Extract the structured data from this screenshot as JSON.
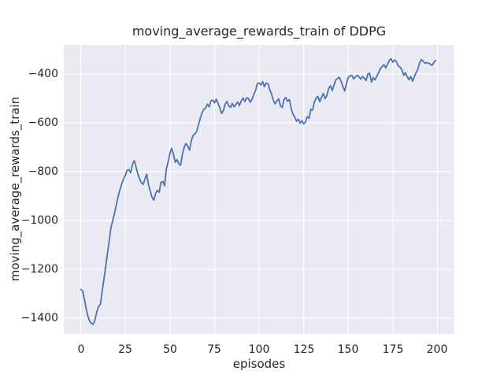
{
  "chart_data": {
    "type": "line",
    "title": "moving_average_rewards_train of DDPG",
    "xlabel": "episodes",
    "ylabel": "moving_average_rewards_train",
    "x_ticks": [
      0,
      25,
      50,
      75,
      100,
      125,
      150,
      175,
      200
    ],
    "y_ticks": [
      -400,
      -600,
      -800,
      -1000,
      -1200,
      -1400
    ],
    "xlim": [
      -9.5,
      209.5
    ],
    "ylim": [
      -1465,
      -281
    ],
    "grid": true,
    "legend": "none",
    "background": "#eaeaf2",
    "grid_color": "#ffffff",
    "line_color": "#4c72b0",
    "text_color": "#262626",
    "series": [
      {
        "name": "moving_average_rewards_train",
        "x_range": [
          0,
          199
        ],
        "y": [
          -1283,
          -1288,
          -1320,
          -1360,
          -1392,
          -1412,
          -1422,
          -1425,
          -1408,
          -1375,
          -1352,
          -1345,
          -1292,
          -1240,
          -1190,
          -1135,
          -1080,
          -1028,
          -1000,
          -970,
          -935,
          -900,
          -875,
          -850,
          -830,
          -815,
          -795,
          -792,
          -805,
          -770,
          -755,
          -780,
          -810,
          -830,
          -846,
          -852,
          -830,
          -810,
          -855,
          -880,
          -905,
          -917,
          -890,
          -877,
          -885,
          -845,
          -840,
          -858,
          -790,
          -760,
          -725,
          -705,
          -730,
          -762,
          -751,
          -768,
          -774,
          -730,
          -700,
          -685,
          -695,
          -712,
          -675,
          -652,
          -645,
          -637,
          -608,
          -582,
          -560,
          -545,
          -540,
          -524,
          -535,
          -510,
          -507,
          -518,
          -503,
          -520,
          -540,
          -562,
          -550,
          -523,
          -513,
          -530,
          -537,
          -521,
          -535,
          -525,
          -515,
          -529,
          -510,
          -499,
          -513,
          -498,
          -500,
          -516,
          -505,
          -485,
          -467,
          -440,
          -437,
          -445,
          -432,
          -452,
          -437,
          -440,
          -465,
          -483,
          -508,
          -523,
          -510,
          -502,
          -530,
          -537,
          -505,
          -497,
          -512,
          -505,
          -542,
          -565,
          -577,
          -594,
          -586,
          -602,
          -591,
          -605,
          -597,
          -575,
          -582,
          -545,
          -549,
          -515,
          -499,
          -492,
          -514,
          -496,
          -480,
          -501,
          -488,
          -460,
          -448,
          -468,
          -445,
          -425,
          -418,
          -414,
          -430,
          -452,
          -470,
          -440,
          -415,
          -408,
          -406,
          -420,
          -412,
          -406,
          -412,
          -421,
          -410,
          -418,
          -427,
          -400,
          -397,
          -434,
          -415,
          -424,
          -410,
          -395,
          -378,
          -370,
          -362,
          -375,
          -360,
          -345,
          -337,
          -352,
          -343,
          -350,
          -367,
          -372,
          -381,
          -406,
          -395,
          -410,
          -424,
          -410,
          -430,
          -412,
          -395,
          -381,
          -355,
          -341,
          -348,
          -356,
          -354,
          -356,
          -360,
          -365,
          -352,
          -345
        ]
      }
    ]
  }
}
